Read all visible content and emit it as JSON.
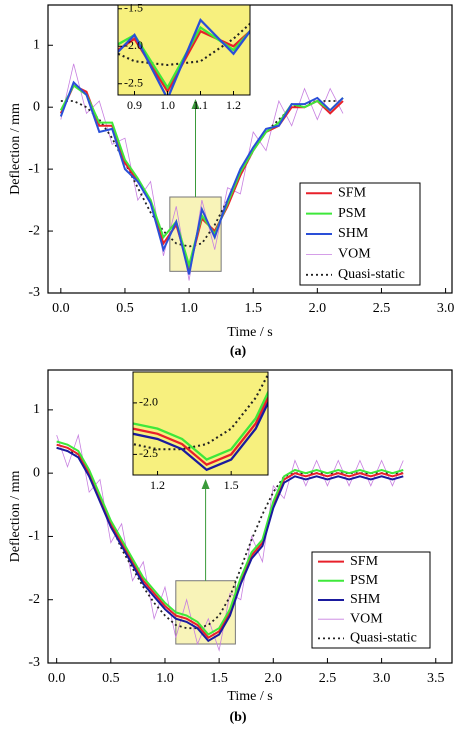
{
  "chart_data": [
    {
      "type": "line",
      "caption": "(a)",
      "xlabel": "Time / s",
      "ylabel": "Deflection / mm",
      "xlim": [
        -0.1,
        3.05
      ],
      "ylim": [
        -3,
        1.65
      ],
      "xticks": [
        {
          "value": 0,
          "label": "0.0"
        },
        {
          "value": 0.5,
          "label": "0.5"
        },
        {
          "value": 1,
          "label": "1.0"
        },
        {
          "value": 1.5,
          "label": "1.5"
        },
        {
          "value": 2,
          "label": "2.0"
        },
        {
          "value": 2.5,
          "label": "2.5"
        },
        {
          "value": 3,
          "label": "3.0"
        }
      ],
      "yticks": [
        -3,
        -2,
        -1,
        0,
        1
      ],
      "x": [
        0,
        0.1,
        0.2,
        0.3,
        0.4,
        0.5,
        0.6,
        0.7,
        0.8,
        0.9,
        1.0,
        1.1,
        1.2,
        1.3,
        1.4,
        1.5,
        1.6,
        1.7,
        1.8,
        1.9,
        2.0,
        2.1,
        2.2
      ],
      "series": [
        {
          "name": "SFM",
          "color": "#e8202a",
          "linestyle": "solid",
          "values": [
            -0.1,
            0.35,
            0.25,
            -0.3,
            -0.3,
            -0.9,
            -1.2,
            -1.5,
            -2.2,
            -1.9,
            -2.6,
            -1.8,
            -2.0,
            -1.6,
            -1.1,
            -0.7,
            -0.4,
            -0.3,
            0.0,
            0.0,
            0.1,
            -0.1,
            0.1
          ]
        },
        {
          "name": "PSM",
          "color": "#3ee83a",
          "linestyle": "solid",
          "values": [
            -0.05,
            0.35,
            0.2,
            -0.25,
            -0.25,
            -0.85,
            -1.15,
            -1.5,
            -2.1,
            -1.85,
            -2.55,
            -1.75,
            -2.05,
            -1.55,
            -1.05,
            -0.7,
            -0.4,
            -0.25,
            0.05,
            0.0,
            0.1,
            -0.05,
            0.15
          ]
        },
        {
          "name": "SHM",
          "color": "#2a4fd8",
          "linestyle": "solid",
          "values": [
            -0.15,
            0.4,
            0.2,
            -0.4,
            -0.35,
            -1.0,
            -1.2,
            -1.55,
            -2.3,
            -1.85,
            -2.7,
            -1.65,
            -2.1,
            -1.5,
            -1.0,
            -0.65,
            -0.35,
            -0.3,
            0.05,
            0.05,
            0.15,
            -0.05,
            0.15
          ]
        },
        {
          "name": "VOM",
          "color": "#c77fe0",
          "linestyle": "thin",
          "values": [
            -0.2,
            0.7,
            -0.1,
            0.1,
            -0.6,
            -0.5,
            -1.5,
            -1.2,
            -2.4,
            -1.6,
            -2.8,
            -1.5,
            -2.3,
            -1.3,
            -1.4,
            -0.4,
            -0.7,
            0.1,
            -0.3,
            0.3,
            -0.2,
            0.3,
            -0.1
          ]
        },
        {
          "name": "Quasi-static",
          "color": "#222222",
          "linestyle": "dotted",
          "values": [
            0.1,
            0.1,
            0.0,
            -0.2,
            -0.5,
            -0.9,
            -1.3,
            -1.7,
            -2.0,
            -2.2,
            -2.25,
            -2.2,
            -1.9,
            -1.5,
            -1.1,
            -0.7,
            -0.4,
            -0.2,
            0.0,
            0.05,
            0.1,
            0.1,
            0.1
          ]
        }
      ],
      "inset": {
        "xlim": [
          0.85,
          1.25
        ],
        "ylim": [
          -2.65,
          -1.45
        ],
        "xticks": [
          {
            "value": 0.9,
            "label": "0.9"
          },
          {
            "value": 1.0,
            "label": "1.0"
          },
          {
            "value": 1.1,
            "label": "1.1"
          },
          {
            "value": 1.2,
            "label": "1.2"
          }
        ],
        "yticks": [
          {
            "value": -1.5,
            "label": "-1.5"
          },
          {
            "value": -2.0,
            "label": "-2.0"
          },
          {
            "value": -2.5,
            "label": "-2.5"
          }
        ]
      }
    },
    {
      "type": "line",
      "caption": "(b)",
      "xlabel": "Time / s",
      "ylabel": "Deflection / mm",
      "xlim": [
        -0.08,
        3.65
      ],
      "ylim": [
        -3,
        1.63
      ],
      "xticks": [
        {
          "value": 0,
          "label": "0.0"
        },
        {
          "value": 0.5,
          "label": "0.5"
        },
        {
          "value": 1,
          "label": "1.0"
        },
        {
          "value": 1.5,
          "label": "1.5"
        },
        {
          "value": 2,
          "label": "2.0"
        },
        {
          "value": 2.5,
          "label": "2.5"
        },
        {
          "value": 3,
          "label": "3.0"
        },
        {
          "value": 3.5,
          "label": "3.5"
        }
      ],
      "yticks": [
        -3,
        -2,
        -1,
        0,
        1
      ],
      "x": [
        0,
        0.1,
        0.2,
        0.3,
        0.4,
        0.5,
        0.6,
        0.7,
        0.8,
        0.9,
        1.0,
        1.1,
        1.2,
        1.3,
        1.4,
        1.5,
        1.6,
        1.7,
        1.8,
        1.9,
        2.0,
        2.1,
        2.2,
        2.3,
        2.4,
        2.5,
        2.6,
        2.7,
        2.8,
        2.9,
        3.0,
        3.1,
        3.2
      ],
      "series": [
        {
          "name": "SFM",
          "color": "#e8202a",
          "linestyle": "solid",
          "values": [
            0.45,
            0.4,
            0.3,
            0.0,
            -0.4,
            -0.8,
            -1.1,
            -1.4,
            -1.7,
            -1.9,
            -2.1,
            -2.25,
            -2.3,
            -2.4,
            -2.6,
            -2.5,
            -2.2,
            -1.7,
            -1.3,
            -1.1,
            -0.5,
            -0.1,
            0.0,
            -0.05,
            0.0,
            -0.05,
            0.0,
            -0.05,
            0.0,
            -0.05,
            0.0,
            -0.05,
            0.0
          ]
        },
        {
          "name": "PSM",
          "color": "#3ee83a",
          "linestyle": "solid",
          "values": [
            0.5,
            0.45,
            0.35,
            0.05,
            -0.35,
            -0.75,
            -1.05,
            -1.35,
            -1.65,
            -1.85,
            -2.05,
            -2.2,
            -2.25,
            -2.35,
            -2.55,
            -2.45,
            -2.15,
            -1.65,
            -1.25,
            -1.05,
            -0.45,
            -0.05,
            0.05,
            0.0,
            0.05,
            0.0,
            0.05,
            0.0,
            0.05,
            0.0,
            0.05,
            0.0,
            0.05
          ]
        },
        {
          "name": "SHM",
          "color": "#1a1a9e",
          "linestyle": "solid",
          "values": [
            0.4,
            0.35,
            0.25,
            -0.05,
            -0.45,
            -0.85,
            -1.15,
            -1.45,
            -1.75,
            -1.95,
            -2.15,
            -2.3,
            -2.35,
            -2.45,
            -2.65,
            -2.55,
            -2.25,
            -1.75,
            -1.35,
            -1.15,
            -0.55,
            -0.15,
            -0.05,
            -0.1,
            -0.05,
            -0.1,
            -0.05,
            -0.1,
            -0.05,
            -0.1,
            -0.05,
            -0.1,
            -0.05
          ]
        },
        {
          "name": "VOM",
          "color": "#c77fe0",
          "linestyle": "thin",
          "values": [
            0.6,
            0.1,
            0.6,
            -0.3,
            -0.1,
            -1.1,
            -0.8,
            -1.7,
            -1.4,
            -2.3,
            -1.8,
            -2.6,
            -2.0,
            -2.7,
            -2.3,
            -2.8,
            -1.9,
            -2.0,
            -1.0,
            -1.4,
            -0.2,
            -0.4,
            0.2,
            -0.2,
            0.2,
            -0.2,
            0.2,
            -0.2,
            0.2,
            -0.2,
            0.2,
            -0.2,
            0.2
          ]
        },
        {
          "name": "Quasi-static",
          "color": "#222222",
          "linestyle": "dotted",
          "values": [
            0.4,
            0.35,
            0.3,
            0.0,
            -0.4,
            -0.8,
            -1.2,
            -1.5,
            -1.8,
            -2.05,
            -2.25,
            -2.4,
            -2.45,
            -2.45,
            -2.4,
            -2.25,
            -1.95,
            -1.5,
            -1.05,
            -0.65,
            -0.3,
            -0.05,
            0,
            0,
            0,
            0,
            0,
            0,
            0,
            0,
            0,
            0,
            0
          ]
        }
      ],
      "inset": {
        "xlim": [
          1.1,
          1.65
        ],
        "ylim": [
          -2.7,
          -1.7
        ],
        "xticks": [
          {
            "value": 1.2,
            "label": "1.2"
          },
          {
            "value": 1.5,
            "label": "1.5"
          }
        ],
        "yticks": [
          {
            "value": -2.0,
            "label": "-2.0"
          },
          {
            "value": -2.5,
            "label": "-2.5"
          }
        ]
      }
    }
  ]
}
